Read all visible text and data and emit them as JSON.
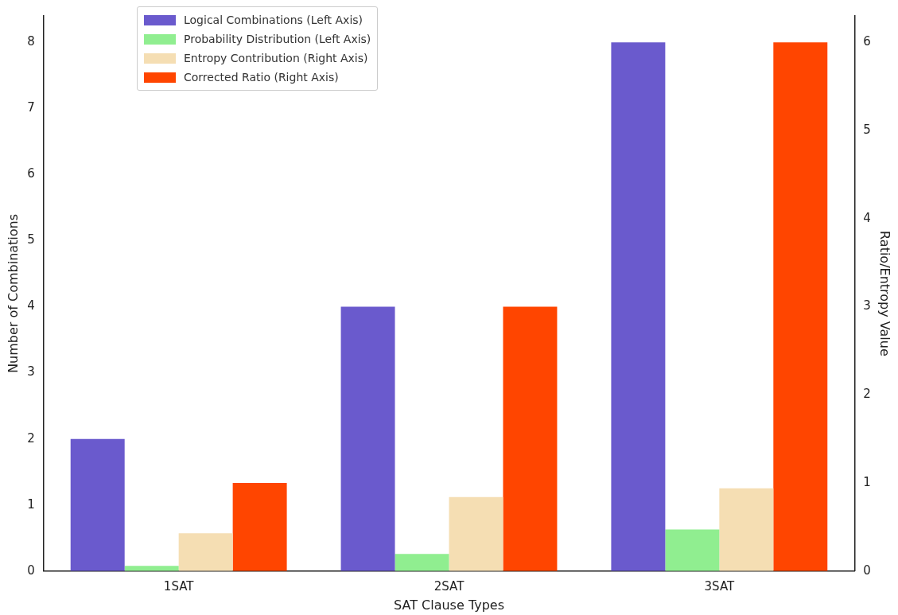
{
  "chart_data": {
    "type": "bar",
    "xlabel": "SAT Clause Types",
    "ylabel": "Number of Combinations",
    "y2label": "Ratio/Entropy Value",
    "categories": [
      "1SAT",
      "2SAT",
      "3SAT"
    ],
    "series": [
      {
        "name": "Logical Combinations (Left Axis)",
        "color": "#6a5acd",
        "values": [
          2,
          4,
          8
        ]
      },
      {
        "name": "Probability Distribution (Left Axis)",
        "color": "#90ee90",
        "values": [
          0.08,
          0.26,
          0.63
        ]
      },
      {
        "name": "Entropy Contribution (Right Axis)",
        "color": "#f5deb3",
        "values": [
          0.43,
          0.84,
          0.94
        ],
        "axis": "y2"
      },
      {
        "name": "Corrected Ratio (Right Axis)",
        "color": "#ff4500",
        "values": [
          1,
          3,
          6
        ],
        "axis": "y2"
      }
    ],
    "ylim": [
      0,
      8.4
    ],
    "yticks": [
      0,
      1,
      2,
      3,
      4,
      5,
      6,
      7,
      8
    ],
    "y2lim": [
      0,
      6.3
    ],
    "y2ticks": [
      0,
      1,
      2,
      3,
      4,
      5,
      6
    ],
    "grid": false,
    "legend": "top left"
  }
}
